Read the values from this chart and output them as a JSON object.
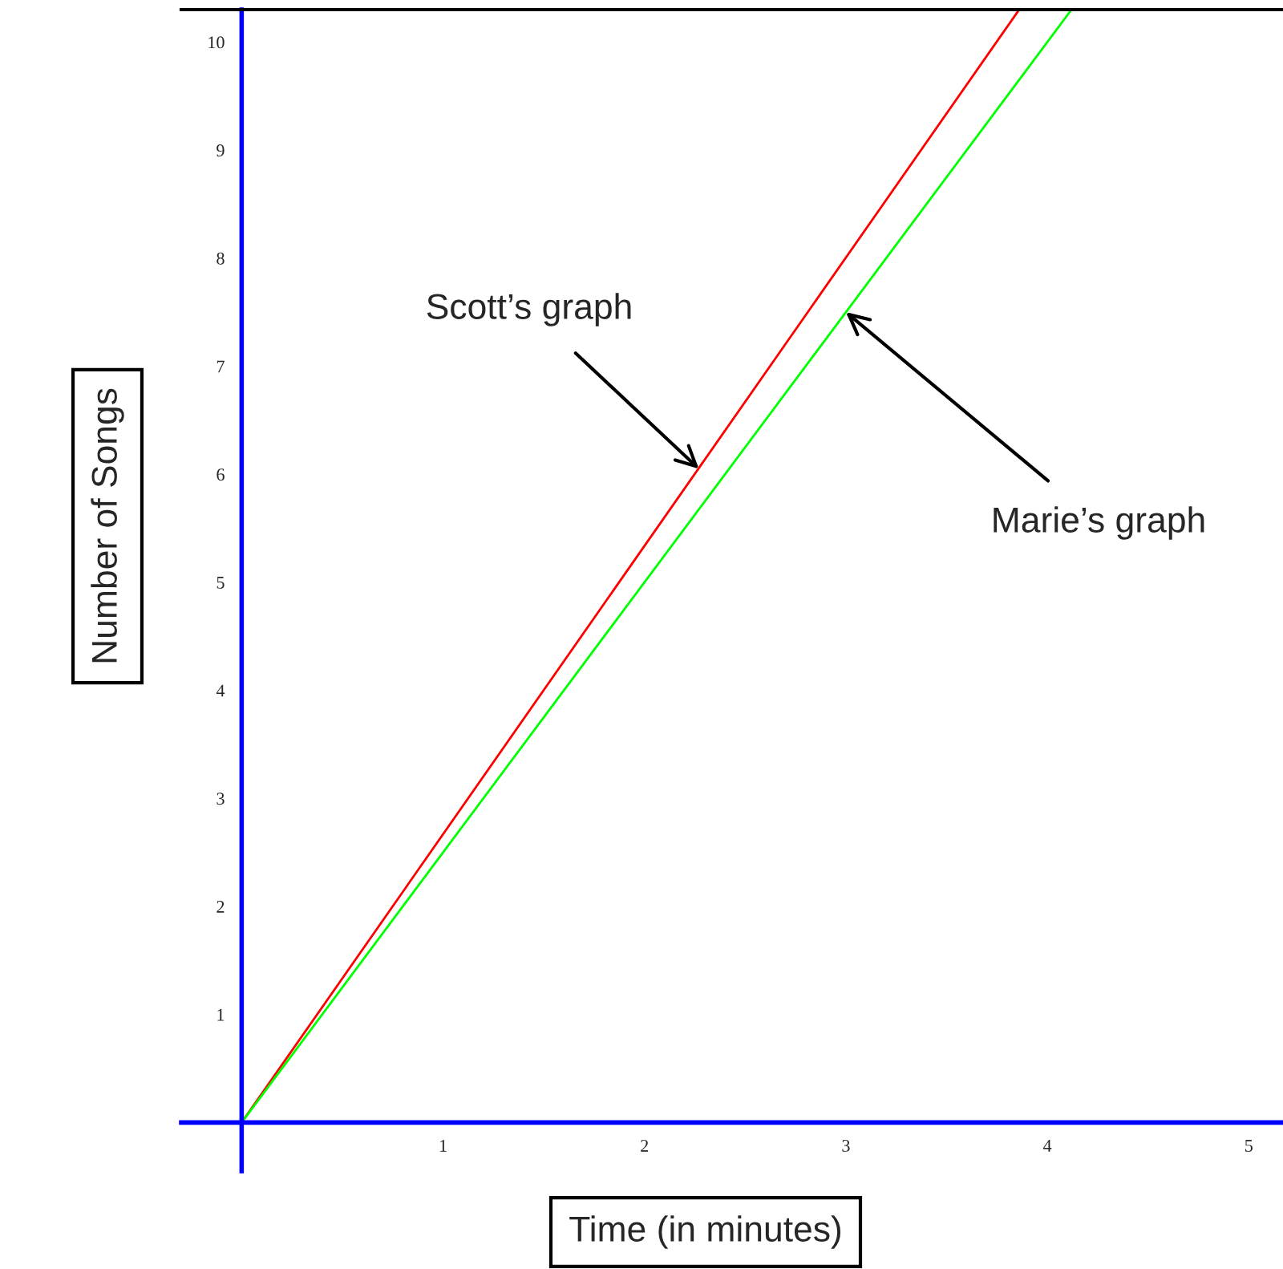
{
  "chart_data": {
    "type": "line",
    "xlabel": "Time (in minutes)",
    "ylabel": "Number of Songs",
    "series": [
      {
        "x": [
          0,
          3.86
        ],
        "values": [
          0,
          10.3
        ],
        "color": "#ff0000"
      },
      {
        "x": [
          0,
          4.12
        ],
        "values": [
          0,
          10.3
        ],
        "color": "#00ff00"
      }
    ],
    "xlim": [
      -0.3,
      5.17
    ],
    "ylim": [
      -0.45,
      10.3
    ],
    "xticks": [
      1,
      2,
      3,
      4,
      5
    ],
    "yticks": [
      1,
      2,
      3,
      4,
      5,
      6,
      7,
      8,
      9,
      10
    ],
    "grid": false,
    "legend": false,
    "marker": "none",
    "line_style": "solid",
    "annotations": [
      {
        "text": "Scott’s graph",
        "x": 2.27,
        "y": 6.05
      },
      {
        "text": "Marie’s graph",
        "x": 3.0,
        "y": 7.5
      }
    ]
  }
}
